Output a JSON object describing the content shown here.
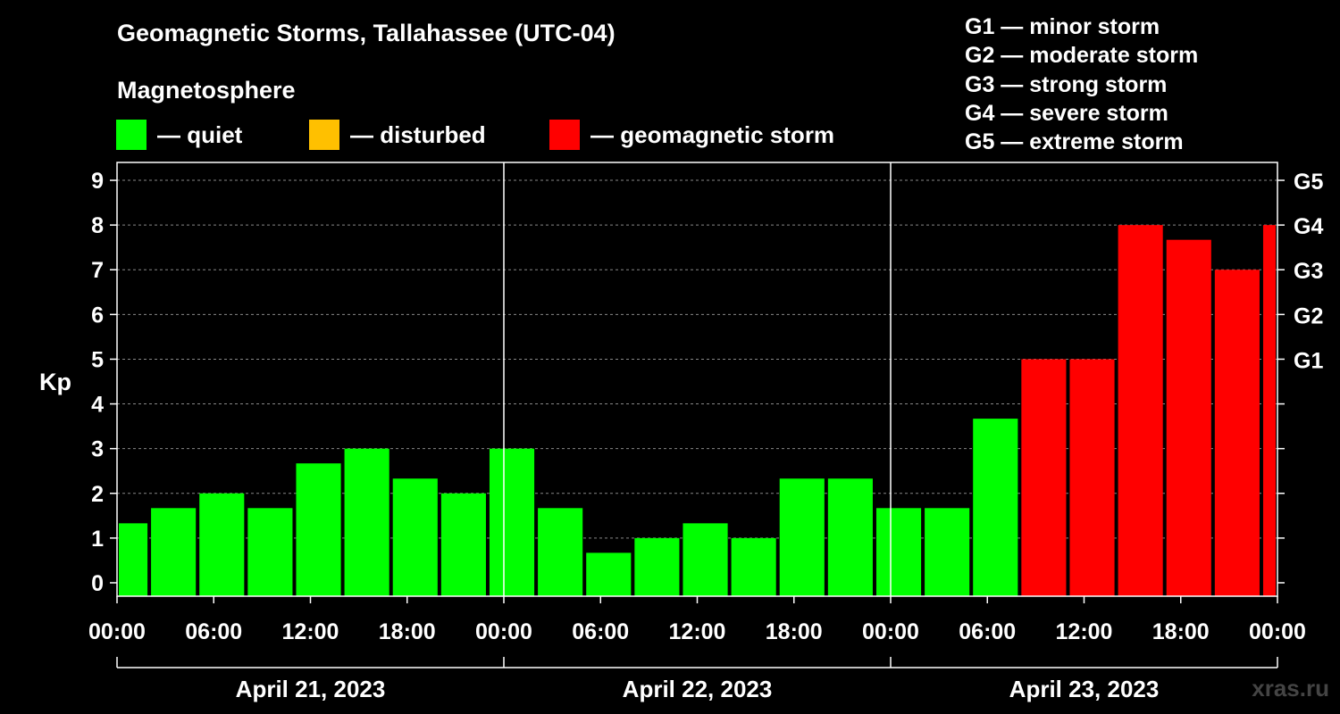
{
  "title": "Geomagnetic Storms, Tallahassee (UTC-04)",
  "subtitle": "Magnetosphere",
  "legend": [
    {
      "label": "— quiet",
      "color": "#00ff00"
    },
    {
      "label": "— disturbed",
      "color": "#ffc000"
    },
    {
      "label": "— geomagnetic storm",
      "color": "#ff0000"
    }
  ],
  "g_scale": [
    "G1 — minor storm",
    "G2 — moderate storm",
    "G3 — strong storm",
    "G4 — severe storm",
    "G5 — extreme storm"
  ],
  "watermark": "xras.ru",
  "chart_data": {
    "type": "bar",
    "title": "Geomagnetic Storms, Tallahassee (UTC-04)",
    "ylabel": "Kp",
    "ylim": [
      -0.3,
      9.4
    ],
    "yticks": [
      0,
      1,
      2,
      3,
      4,
      5,
      6,
      7,
      8,
      9
    ],
    "right_axis_labels": [
      {
        "kp": 5,
        "label": "G1"
      },
      {
        "kp": 6,
        "label": "G2"
      },
      {
        "kp": 7,
        "label": "G3"
      },
      {
        "kp": 8,
        "label": "G4"
      },
      {
        "kp": 9,
        "label": "G5"
      }
    ],
    "x_range_hours": [
      0,
      72
    ],
    "x_ticks": [
      {
        "hour": 0,
        "label": "00:00"
      },
      {
        "hour": 6,
        "label": "06:00"
      },
      {
        "hour": 12,
        "label": "12:00"
      },
      {
        "hour": 18,
        "label": "18:00"
      },
      {
        "hour": 24,
        "label": "00:00"
      },
      {
        "hour": 30,
        "label": "06:00"
      },
      {
        "hour": 36,
        "label": "12:00"
      },
      {
        "hour": 42,
        "label": "18:00"
      },
      {
        "hour": 48,
        "label": "00:00"
      },
      {
        "hour": 54,
        "label": "06:00"
      },
      {
        "hour": 60,
        "label": "12:00"
      },
      {
        "hour": 66,
        "label": "18:00"
      },
      {
        "hour": 72,
        "label": "00:00"
      }
    ],
    "days": [
      {
        "label": "April 21, 2023",
        "start_hour": 0,
        "end_hour": 24
      },
      {
        "label": "April 22, 2023",
        "start_hour": 24,
        "end_hour": 48
      },
      {
        "label": "April 23, 2023",
        "start_hour": 48,
        "end_hour": 72
      }
    ],
    "bars": [
      {
        "start": 0,
        "end": 2,
        "kp": 1.33,
        "level": "quiet"
      },
      {
        "start": 2,
        "end": 5,
        "kp": 1.67,
        "level": "quiet"
      },
      {
        "start": 5,
        "end": 8,
        "kp": 2.0,
        "level": "quiet"
      },
      {
        "start": 8,
        "end": 11,
        "kp": 1.67,
        "level": "quiet"
      },
      {
        "start": 11,
        "end": 14,
        "kp": 2.67,
        "level": "quiet"
      },
      {
        "start": 14,
        "end": 17,
        "kp": 3.0,
        "level": "quiet"
      },
      {
        "start": 17,
        "end": 20,
        "kp": 2.33,
        "level": "quiet"
      },
      {
        "start": 20,
        "end": 23,
        "kp": 2.0,
        "level": "quiet"
      },
      {
        "start": 23,
        "end": 26,
        "kp": 3.0,
        "level": "quiet"
      },
      {
        "start": 26,
        "end": 29,
        "kp": 1.67,
        "level": "quiet"
      },
      {
        "start": 29,
        "end": 32,
        "kp": 0.67,
        "level": "quiet"
      },
      {
        "start": 32,
        "end": 35,
        "kp": 1.0,
        "level": "quiet"
      },
      {
        "start": 35,
        "end": 38,
        "kp": 1.33,
        "level": "quiet"
      },
      {
        "start": 38,
        "end": 41,
        "kp": 1.0,
        "level": "quiet"
      },
      {
        "start": 41,
        "end": 44,
        "kp": 2.33,
        "level": "quiet"
      },
      {
        "start": 44,
        "end": 47,
        "kp": 2.33,
        "level": "quiet"
      },
      {
        "start": 47,
        "end": 50,
        "kp": 1.67,
        "level": "quiet"
      },
      {
        "start": 50,
        "end": 53,
        "kp": 1.67,
        "level": "quiet"
      },
      {
        "start": 53,
        "end": 56,
        "kp": 3.67,
        "level": "quiet"
      },
      {
        "start": 56,
        "end": 59,
        "kp": 5.0,
        "level": "storm"
      },
      {
        "start": 59,
        "end": 62,
        "kp": 5.0,
        "level": "storm"
      },
      {
        "start": 62,
        "end": 65,
        "kp": 8.0,
        "level": "storm"
      },
      {
        "start": 65,
        "end": 68,
        "kp": 7.67,
        "level": "storm"
      },
      {
        "start": 68,
        "end": 71,
        "kp": 7.0,
        "level": "storm"
      },
      {
        "start": 71,
        "end": 72,
        "kp": 8.0,
        "level": "storm"
      }
    ],
    "colors": {
      "quiet": "#00ff00",
      "disturbed": "#ffc000",
      "storm": "#ff0000"
    }
  }
}
